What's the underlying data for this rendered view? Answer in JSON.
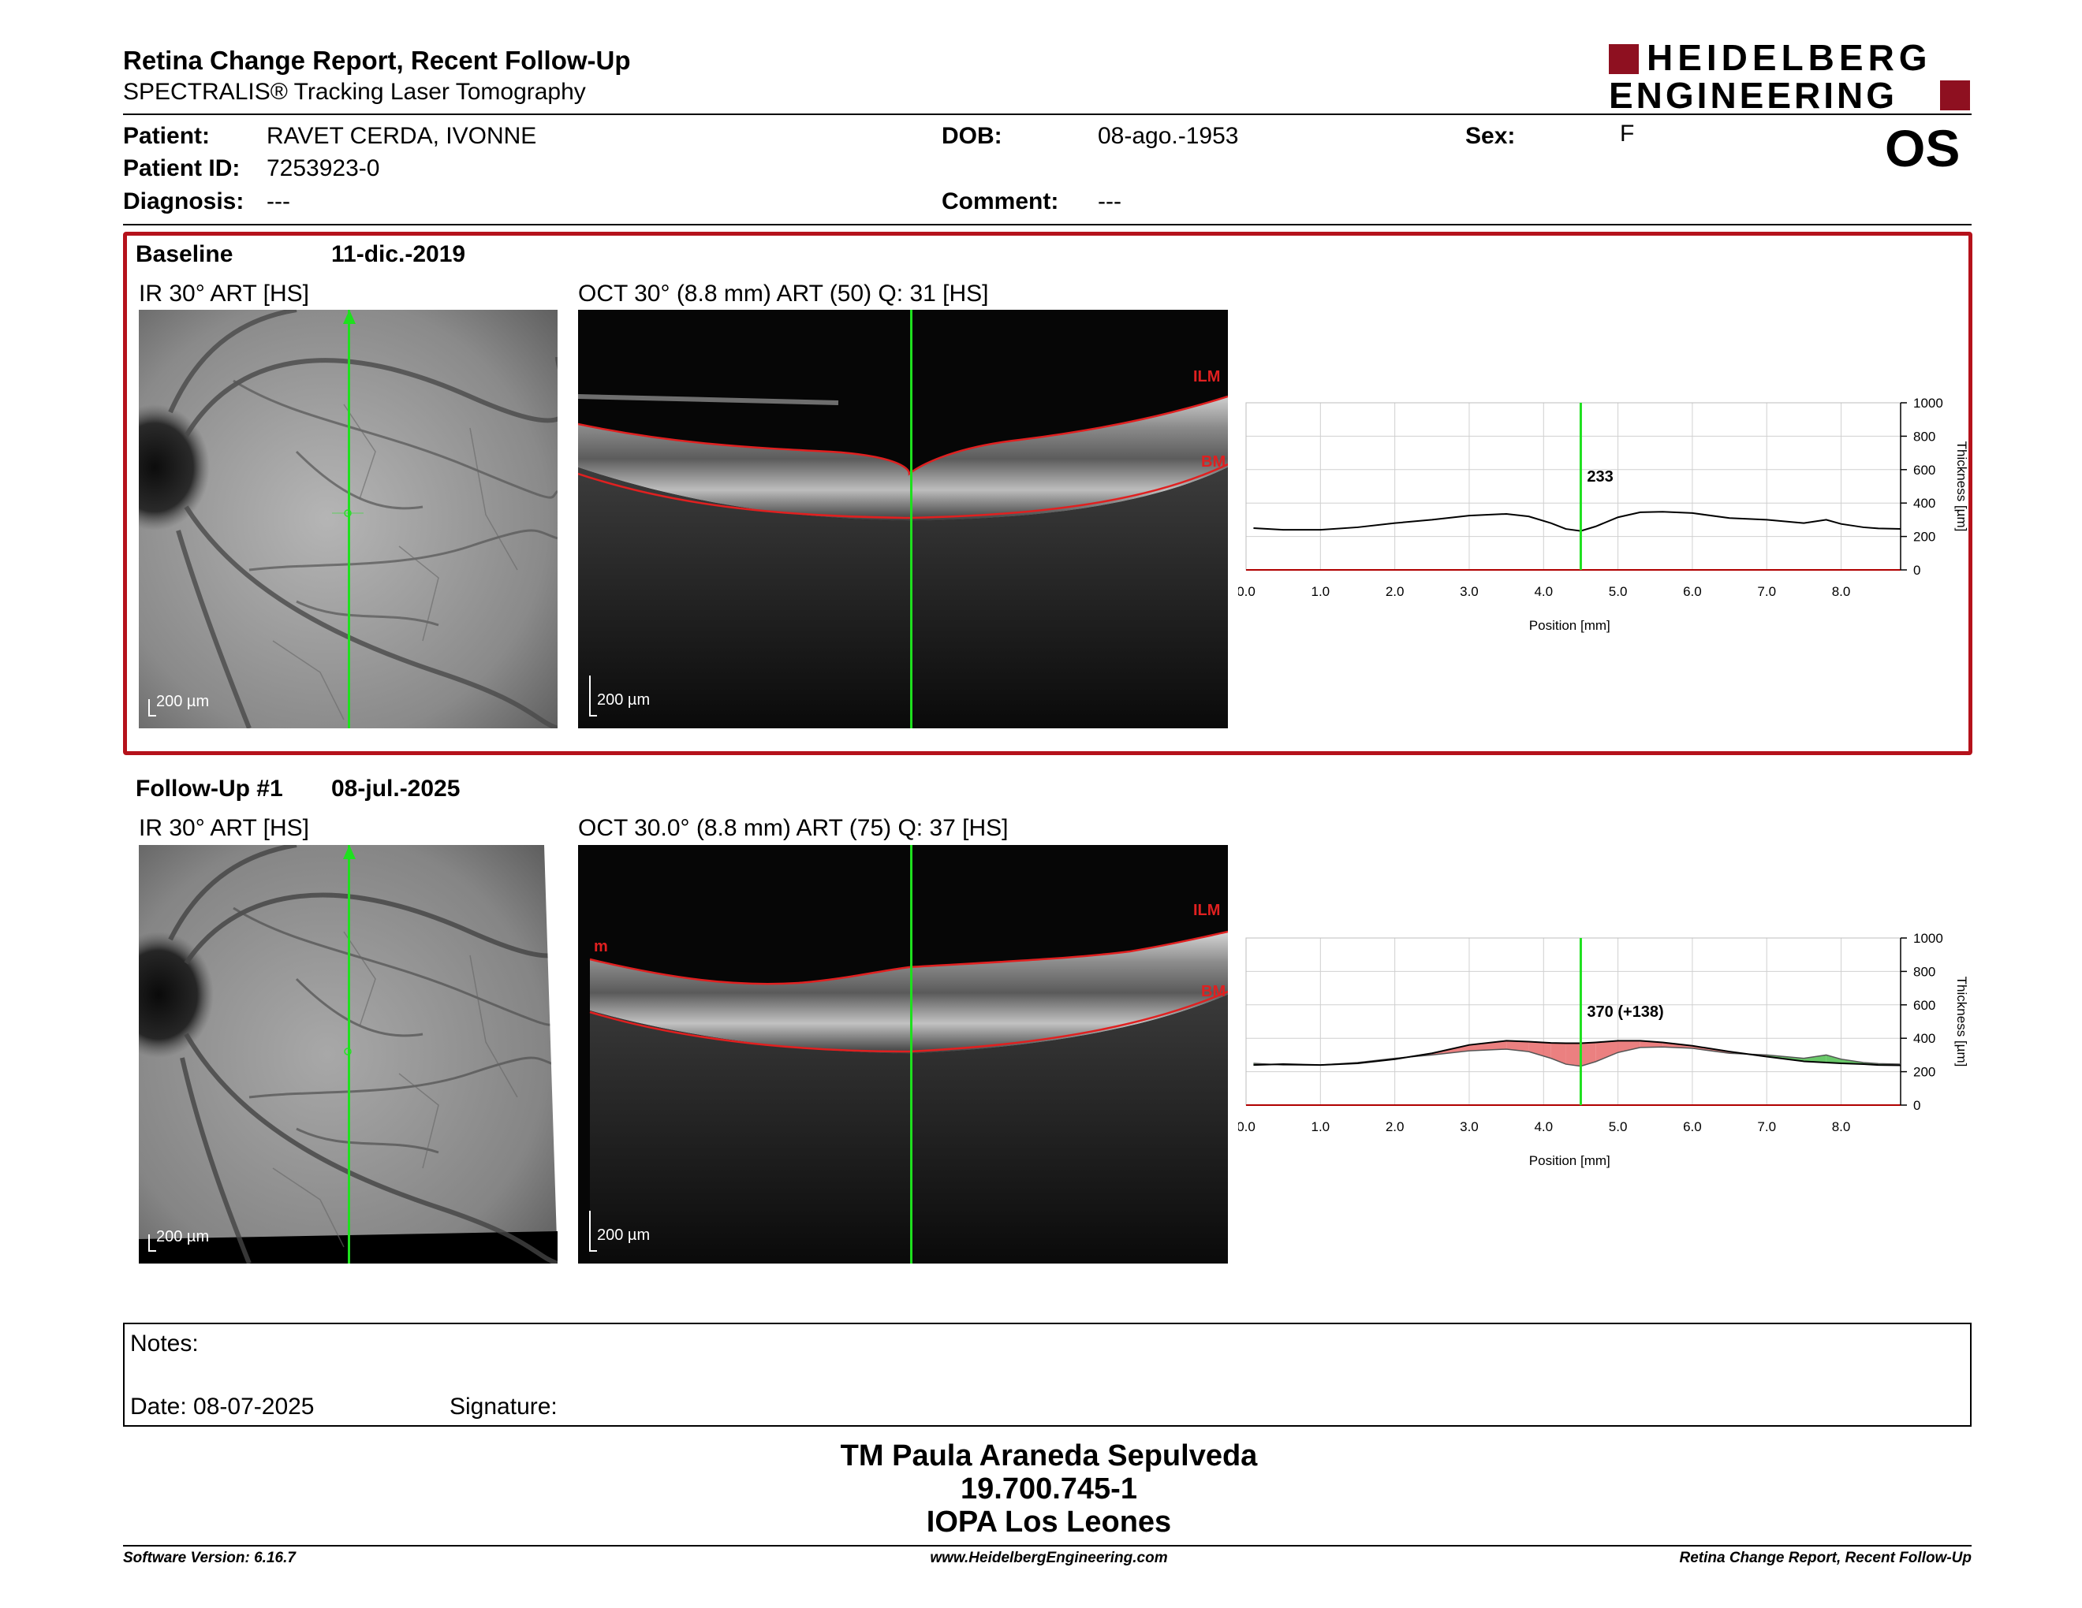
{
  "header": {
    "title": "Retina Change Report, Recent Follow-Up",
    "subtitle": "SPECTRALIS® Tracking Laser Tomography",
    "logo_line1": "HEIDELBERG",
    "logo_line2": "ENGINEERING",
    "eye": "OS"
  },
  "patient": {
    "patient_label": "Patient:",
    "patient_value": "RAVET CERDA, IVONNE",
    "id_label": "Patient ID:",
    "id_value": "7253923-0",
    "diagnosis_label": "Diagnosis:",
    "diagnosis_value": "---",
    "dob_label": "DOB:",
    "dob_value": "08-ago.-1953",
    "comment_label": "Comment:",
    "comment_value": "---",
    "sex_label": "Sex:",
    "sex_value": "F"
  },
  "baseline": {
    "label": "Baseline",
    "date": "11-dic.-2019",
    "ir_caption": "IR 30° ART [HS]",
    "oct_caption": "OCT 30° (8.8 mm) ART (50) Q: 31 [HS]",
    "scale_ir": "200 µm",
    "scale_oct": "200 µm",
    "ilm_label": "ILM",
    "bm_label": "BM"
  },
  "followup": {
    "label": "Follow-Up #1",
    "date": "08-jul.-2025",
    "ir_caption": "IR 30° ART [HS]",
    "oct_caption": "OCT 30.0° (8.8 mm) ART (75) Q: 37 [HS]",
    "scale_ir": "200 µm",
    "scale_oct": "200 µm",
    "ilm_label": "ILM",
    "bm_label": "BM",
    "m_label": "m"
  },
  "chart_data": [
    {
      "type": "line",
      "xlabel": "Position [mm]",
      "ylabel": "Thickness [µm]",
      "xlim": [
        0,
        8.8
      ],
      "ylim": [
        0,
        1000
      ],
      "xticks": [
        "0.0",
        "1.0",
        "2.0",
        "3.0",
        "4.0",
        "5.0",
        "6.0",
        "7.0",
        "8.0"
      ],
      "yticks": [
        "0",
        "200",
        "400",
        "600",
        "800",
        "1000"
      ],
      "grid": true,
      "marker_x": 4.5,
      "marker_label": "233",
      "series": [
        {
          "x": [
            0.1,
            0.5,
            1.0,
            1.5,
            2.0,
            2.5,
            3.0,
            3.5,
            3.8,
            4.1,
            4.3,
            4.5,
            4.7,
            5.0,
            5.3,
            5.6,
            6.0,
            6.5,
            7.0,
            7.5,
            7.8,
            8.0,
            8.3,
            8.5,
            8.8
          ],
          "values": [
            250,
            240,
            240,
            255,
            280,
            300,
            325,
            335,
            320,
            280,
            245,
            233,
            260,
            315,
            345,
            348,
            340,
            310,
            300,
            280,
            300,
            275,
            255,
            248,
            245
          ]
        }
      ]
    },
    {
      "type": "area",
      "xlabel": "Position [mm]",
      "ylabel": "Thickness [µm]",
      "xlim": [
        0,
        8.8
      ],
      "ylim": [
        0,
        1000
      ],
      "xticks": [
        "0.0",
        "1.0",
        "2.0",
        "3.0",
        "4.0",
        "5.0",
        "6.0",
        "7.0",
        "8.0"
      ],
      "yticks": [
        "0",
        "200",
        "400",
        "600",
        "800",
        "1000"
      ],
      "grid": true,
      "marker_x": 4.5,
      "marker_label": "370 (+138)",
      "series": [
        {
          "x": [
            0.1,
            0.5,
            1.0,
            1.5,
            2.0,
            2.5,
            3.0,
            3.5,
            3.8,
            4.1,
            4.3,
            4.5,
            4.7,
            5.0,
            5.3,
            5.6,
            6.0,
            6.5,
            7.0,
            7.5,
            7.8,
            8.0,
            8.3,
            8.5,
            8.8
          ],
          "values": [
            240,
            245,
            240,
            250,
            275,
            310,
            360,
            385,
            380,
            372,
            370,
            370,
            375,
            385,
            385,
            375,
            355,
            320,
            290,
            262,
            255,
            250,
            245,
            240,
            238
          ]
        }
      ]
    }
  ],
  "notes": {
    "notes_label": "Notes:",
    "date_label": "Date: 08-07-2025",
    "signature_label": "Signature:"
  },
  "stamp": {
    "line1": "TM Paula Araneda Sepulveda",
    "line2": "19.700.745-1",
    "line3": "IOPA Los Leones"
  },
  "footer": {
    "left": "Software Version: 6.16.7",
    "center": "www.HeidelbergEngineering.com",
    "right": "Retina Change Report, Recent Follow-Up"
  }
}
